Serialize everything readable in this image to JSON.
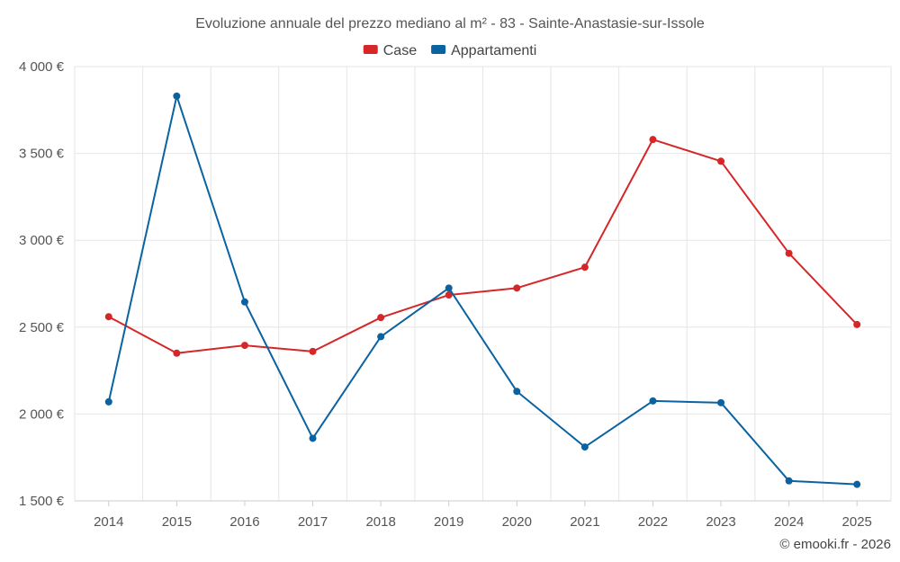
{
  "chart_data": {
    "type": "line",
    "title": "Evoluzione annuale del prezzo mediano al m² - 83 - Sainte-Anastasie-sur-Issole",
    "xlabel": "",
    "ylabel": "",
    "categories": [
      "2014",
      "2015",
      "2016",
      "2017",
      "2018",
      "2019",
      "2020",
      "2021",
      "2022",
      "2023",
      "2024",
      "2025"
    ],
    "ylim": [
      1500,
      4000
    ],
    "yticks": [
      1500,
      2000,
      2500,
      3000,
      3500,
      4000
    ],
    "ytick_labels": [
      "1 500 €",
      "2 000 €",
      "2 500 €",
      "3 000 €",
      "3 500 €",
      "4 000 €"
    ],
    "legend_position": "top-center",
    "grid": true,
    "series": [
      {
        "name": "Case",
        "color": "#d62728",
        "values": [
          2560,
          2350,
          2395,
          2360,
          2555,
          2685,
          2725,
          2845,
          3580,
          3455,
          2925,
          2515
        ]
      },
      {
        "name": "Appartamenti",
        "color": "#0a63a0",
        "values": [
          2070,
          3830,
          2645,
          1860,
          2445,
          2725,
          2130,
          1810,
          2075,
          2065,
          1615,
          1595
        ]
      }
    ]
  },
  "credit": "© emooki.fr - 2026"
}
